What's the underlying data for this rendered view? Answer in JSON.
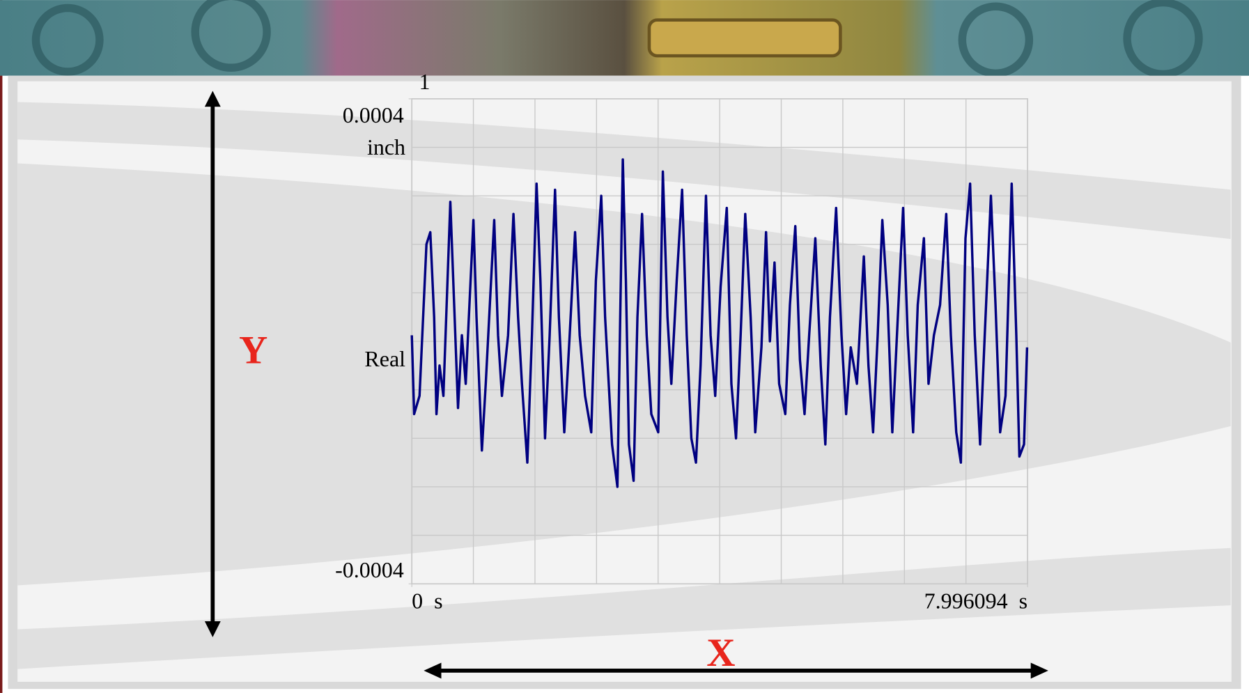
{
  "chart_data": {
    "type": "line",
    "trace_label": "1",
    "y_unit": "inch",
    "ylabel": "Real",
    "annotations": [
      "Y",
      "X"
    ],
    "color": "#000080",
    "grid": true,
    "ylim": [
      -0.0004,
      0.0004
    ],
    "yticks": [
      0.0004,
      -0.0004
    ],
    "xlim": [
      0,
      7.996094
    ],
    "xticks": [
      {
        "value": 0,
        "label": "0  s"
      },
      {
        "value": 7.996094,
        "label": "7.996094  s"
      }
    ],
    "x": [
      0,
      0.03,
      0.1,
      0.19,
      0.24,
      0.29,
      0.32,
      0.36,
      0.41,
      0.5,
      0.55,
      0.6,
      0.65,
      0.7,
      0.8,
      0.84,
      0.91,
      0.96,
      1.07,
      1.12,
      1.17,
      1.25,
      1.32,
      1.38,
      1.43,
      1.5,
      1.56,
      1.62,
      1.67,
      1.73,
      1.79,
      1.86,
      1.91,
      1.98,
      2.05,
      2.12,
      2.18,
      2.25,
      2.33,
      2.39,
      2.46,
      2.51,
      2.6,
      2.67,
      2.74,
      2.78,
      2.82,
      2.88,
      2.93,
      2.99,
      3.05,
      3.11,
      3.2,
      3.26,
      3.32,
      3.37,
      3.44,
      3.51,
      3.57,
      3.63,
      3.69,
      3.75,
      3.82,
      3.88,
      3.94,
      4.01,
      4.09,
      4.15,
      4.21,
      4.27,
      4.33,
      4.4,
      4.46,
      4.54,
      4.6,
      4.65,
      4.71,
      4.77,
      4.85,
      4.91,
      4.98,
      5.04,
      5.1,
      5.16,
      5.24,
      5.31,
      5.37,
      5.43,
      5.51,
      5.58,
      5.64,
      5.7,
      5.78,
      5.87,
      5.93,
      5.99,
      6.05,
      6.11,
      6.18,
      6.24,
      6.3,
      6.38,
      6.44,
      6.51,
      6.57,
      6.65,
      6.71,
      6.78,
      6.86,
      6.94,
      7.0,
      7.07,
      7.13,
      7.19,
      7.25,
      7.31,
      7.38,
      7.44,
      7.52,
      7.58,
      7.64,
      7.71,
      7.79,
      7.85,
      7.89,
      7.95,
      7.99
    ],
    "values": [
      1e-05,
      -0.00012,
      -9e-05,
      0.00016,
      0.00018,
      4e-05,
      -0.00012,
      -4e-05,
      -9e-05,
      0.00023,
      6e-05,
      -0.00011,
      1e-05,
      -7e-05,
      0.0002,
      4e-05,
      -0.00018,
      -7e-05,
      0.0002,
      1e-05,
      -9e-05,
      1e-05,
      0.00021,
      4e-05,
      -7e-05,
      -0.0002,
      1e-05,
      0.00026,
      0.0001,
      -0.00016,
      1e-05,
      0.00025,
      4e-05,
      -0.00015,
      1e-05,
      0.00018,
      1e-05,
      -9e-05,
      -0.00015,
      0.0001,
      0.00024,
      4e-05,
      -0.00017,
      -0.00024,
      0.0003,
      0.0001,
      -0.00017,
      -0.00023,
      4e-05,
      0.00021,
      1e-05,
      -0.00012,
      -0.00015,
      0.00028,
      4e-05,
      -7e-05,
      0.0001,
      0.00025,
      1e-05,
      -0.00016,
      -0.0002,
      -4e-05,
      0.00024,
      1e-05,
      -9e-05,
      9e-05,
      0.00022,
      -7e-05,
      -0.00016,
      1e-05,
      0.00021,
      4e-05,
      -0.00015,
      -1e-05,
      0.00018,
      0,
      0.00013,
      -7e-05,
      -0.00012,
      6e-05,
      0.00019,
      -3e-05,
      -0.00012,
      1e-05,
      0.00017,
      -4e-05,
      -0.00017,
      4e-05,
      0.00022,
      1e-05,
      -0.00012,
      -1e-05,
      -7e-05,
      0.00014,
      -4e-05,
      -0.00015,
      1e-05,
      0.0002,
      6e-05,
      -0.00015,
      1e-05,
      0.00022,
      1e-05,
      -0.00015,
      6e-05,
      0.00017,
      -7e-05,
      1e-05,
      6e-05,
      0.00021,
      1e-05,
      -0.00015,
      -0.0002,
      0.00017,
      0.00026,
      1e-05,
      -0.00017,
      1e-05,
      0.00024,
      6e-05,
      -0.00015,
      -9e-05,
      0.00026,
      1e-05,
      -0.00019,
      -0.00017,
      -1e-05
    ]
  }
}
